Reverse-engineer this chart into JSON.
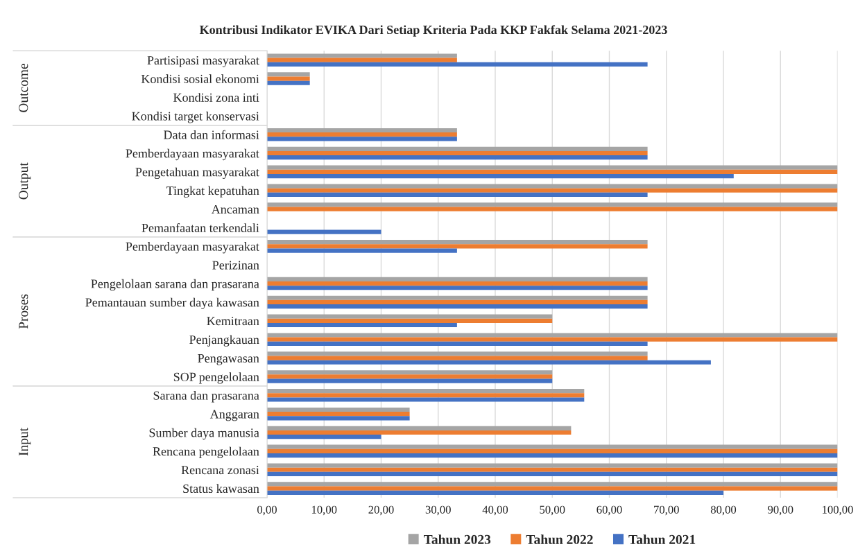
{
  "chart_data": {
    "type": "bar",
    "orientation": "horizontal",
    "title": "Kontribusi Indikator EVIKA Dari Setiap Kriteria Pada KKP Fakfak Selama 2021-2023",
    "categories": [
      "Partisipasi masyarakat",
      "Kondisi sosial ekonomi",
      "Kondisi zona inti",
      "Kondisi target konservasi",
      "Data dan informasi",
      "Pemberdayaan masyarakat",
      "Pengetahuan masyarakat",
      "Tingkat kepatuhan",
      "Ancaman",
      "Pemanfaatan terkendali",
      "Pemberdayaan masyarakat",
      "Perizinan",
      "Pengelolaan sarana dan prasarana",
      "Pemantauan sumber daya kawasan",
      "Kemitraan",
      "Penjangkauan",
      "Pengawasan",
      "SOP pengelolaan",
      "Sarana dan prasarana",
      "Anggaran",
      "Sumber daya manusia",
      "Rencana pengelolaan",
      "Rencana zonasi",
      "Status kawasan"
    ],
    "series": [
      {
        "name": "Tahun 2023",
        "color": "#a5a5a5",
        "values": [
          33.3,
          7.5,
          0,
          0,
          33.3,
          66.7,
          100,
          100,
          100,
          0,
          66.7,
          0,
          66.7,
          66.7,
          50,
          100,
          66.7,
          50,
          55.6,
          25,
          53.3,
          100,
          100,
          100
        ]
      },
      {
        "name": "Tahun 2022",
        "color": "#ed7d31",
        "values": [
          33.3,
          7.5,
          0,
          0,
          33.3,
          66.7,
          100,
          100,
          100,
          0,
          66.7,
          0,
          66.7,
          66.7,
          50,
          100,
          66.7,
          50,
          55.6,
          25,
          53.3,
          100,
          100,
          100
        ]
      },
      {
        "name": "Tahun 2021",
        "color": "#4472c4",
        "values": [
          66.7,
          7.5,
          0,
          0,
          33.3,
          66.7,
          81.8,
          66.7,
          0,
          20,
          33.3,
          0,
          66.7,
          66.7,
          33.3,
          66.7,
          77.8,
          50,
          55.6,
          25,
          20,
          100,
          100,
          80
        ]
      }
    ],
    "annotations": [
      "Outcome",
      "Output",
      "Proses",
      "Input"
    ],
    "xlim": [
      0,
      100
    ],
    "xticks": [
      {
        "value": 0,
        "label": "0,00"
      },
      {
        "value": 10,
        "label": "10,00"
      },
      {
        "value": 20,
        "label": "20,00"
      },
      {
        "value": 30,
        "label": "30,00"
      },
      {
        "value": 40,
        "label": "40,00"
      },
      {
        "value": 50,
        "label": "50,00"
      },
      {
        "value": 60,
        "label": "60,00"
      },
      {
        "value": 70,
        "label": "70,00"
      },
      {
        "value": 80,
        "label": "80,00"
      },
      {
        "value": 90,
        "label": "90,00"
      },
      {
        "value": 100,
        "label": "100,00"
      }
    ],
    "grid": "x",
    "legend": "bottom"
  }
}
